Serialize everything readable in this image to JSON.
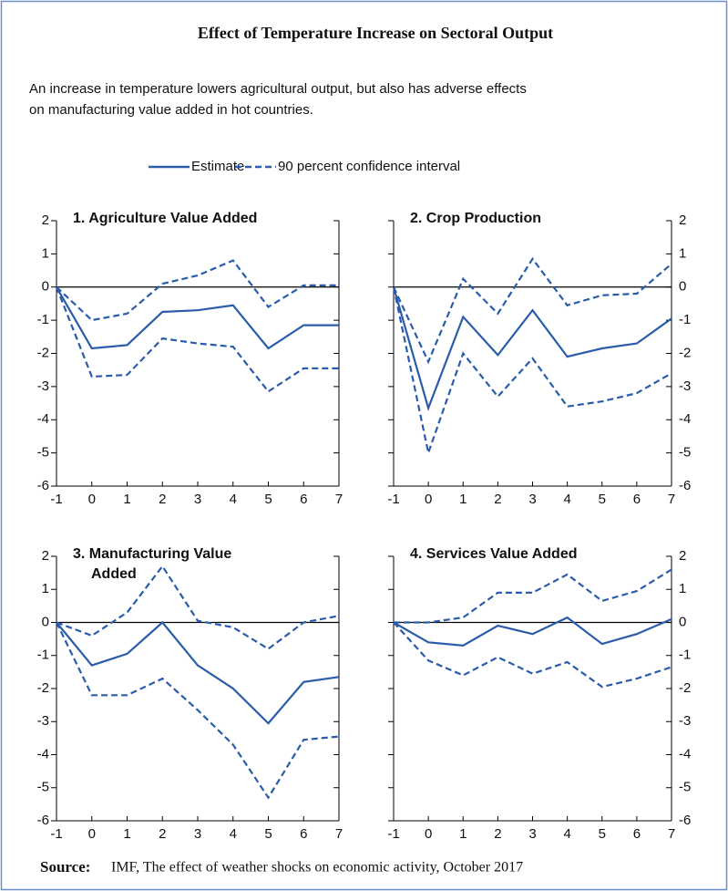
{
  "header": {
    "title": "Effect of Temperature Increase on Sectoral Output",
    "subtitle": [
      "An increase in temperature lowers agricultural output, but also has adverse effects",
      "on manufacturing value added in hot countries."
    ]
  },
  "color": "#2a5caa",
  "legend": [
    {
      "name": "Estimate",
      "style": "solid"
    },
    {
      "name": "90 percent confidence interval",
      "style": "dashed"
    }
  ],
  "chart_data": [
    {
      "type": "line",
      "title": "1. Agriculture Value Added",
      "y_label_side": "left",
      "x": [
        -1,
        0,
        1,
        2,
        3,
        4,
        5,
        6,
        7
      ],
      "xlim": [
        -1,
        7
      ],
      "ylim": [
        -6,
        2
      ],
      "xticks": [
        -1,
        0,
        1,
        2,
        3,
        4,
        5,
        6,
        7
      ],
      "yticks": [
        -6,
        -5,
        -4,
        -3,
        -2,
        -1,
        0,
        1,
        2
      ],
      "series": [
        {
          "style": "solid",
          "values": [
            0,
            -1.85,
            -1.75,
            -0.75,
            -0.7,
            -0.55,
            -1.85,
            -1.15,
            -1.15
          ]
        },
        {
          "style": "dashed",
          "values": [
            0,
            -1.0,
            -0.8,
            0.1,
            0.35,
            0.8,
            -0.6,
            0.05,
            0.05
          ]
        },
        {
          "style": "dashed",
          "values": [
            0,
            -2.7,
            -2.65,
            -1.55,
            -1.7,
            -1.8,
            -3.15,
            -2.45,
            -2.45
          ]
        }
      ]
    },
    {
      "type": "line",
      "title": "2. Crop Production",
      "y_label_side": "right",
      "x": [
        -1,
        0,
        1,
        2,
        3,
        4,
        5,
        6,
        7
      ],
      "xlim": [
        -1,
        7
      ],
      "ylim": [
        -6,
        2
      ],
      "xticks": [
        -1,
        0,
        1,
        2,
        3,
        4,
        5,
        6,
        7
      ],
      "yticks": [
        -6,
        -5,
        -4,
        -3,
        -2,
        -1,
        0,
        1,
        2
      ],
      "series": [
        {
          "style": "solid",
          "values": [
            0,
            -3.65,
            -0.9,
            -2.05,
            -0.7,
            -2.1,
            -1.85,
            -1.7,
            -0.95
          ]
        },
        {
          "style": "dashed",
          "values": [
            0,
            -2.25,
            0.25,
            -0.8,
            0.85,
            -0.55,
            -0.25,
            -0.2,
            0.7
          ]
        },
        {
          "style": "dashed",
          "values": [
            0,
            -5.0,
            -2.0,
            -3.3,
            -2.15,
            -3.6,
            -3.45,
            -3.2,
            -2.6
          ]
        }
      ]
    },
    {
      "type": "line",
      "title": [
        "3. Manufacturing Value",
        "Added"
      ],
      "y_label_side": "left",
      "x": [
        -1,
        0,
        1,
        2,
        3,
        4,
        5,
        6,
        7
      ],
      "xlim": [
        -1,
        7
      ],
      "ylim": [
        -6,
        2
      ],
      "xticks": [
        -1,
        0,
        1,
        2,
        3,
        4,
        5,
        6,
        7
      ],
      "yticks": [
        -6,
        -5,
        -4,
        -3,
        -2,
        -1,
        0,
        1,
        2
      ],
      "series": [
        {
          "style": "solid",
          "values": [
            0,
            -1.3,
            -0.95,
            0,
            -1.3,
            -2.0,
            -3.05,
            -1.8,
            -1.65
          ]
        },
        {
          "style": "dashed",
          "values": [
            0,
            -0.4,
            0.3,
            1.7,
            0.05,
            -0.15,
            -0.8,
            0,
            0.2
          ]
        },
        {
          "style": "dashed",
          "values": [
            0,
            -2.2,
            -2.2,
            -1.7,
            -2.65,
            -3.7,
            -5.3,
            -3.55,
            -3.45
          ]
        }
      ]
    },
    {
      "type": "line",
      "title": "4. Services Value Added",
      "y_label_side": "right",
      "x": [
        -1,
        0,
        1,
        2,
        3,
        4,
        5,
        6,
        7
      ],
      "xlim": [
        -1,
        7
      ],
      "ylim": [
        -6,
        2
      ],
      "xticks": [
        -1,
        0,
        1,
        2,
        3,
        4,
        5,
        6,
        7
      ],
      "yticks": [
        -6,
        -5,
        -4,
        -3,
        -2,
        -1,
        0,
        1,
        2
      ],
      "series": [
        {
          "style": "solid",
          "values": [
            0,
            -0.6,
            -0.7,
            -0.1,
            -0.35,
            0.15,
            -0.65,
            -0.35,
            0.1
          ]
        },
        {
          "style": "dashed",
          "values": [
            0,
            0,
            0.15,
            0.9,
            0.9,
            1.45,
            0.65,
            0.95,
            1.6
          ]
        },
        {
          "style": "dashed",
          "values": [
            0,
            -1.15,
            -1.6,
            -1.05,
            -1.55,
            -1.2,
            -1.95,
            -1.7,
            -1.35
          ]
        }
      ]
    }
  ],
  "source": {
    "label": "Source:",
    "text": "IMF, The effect of weather shocks on economic activity, October 2017"
  }
}
